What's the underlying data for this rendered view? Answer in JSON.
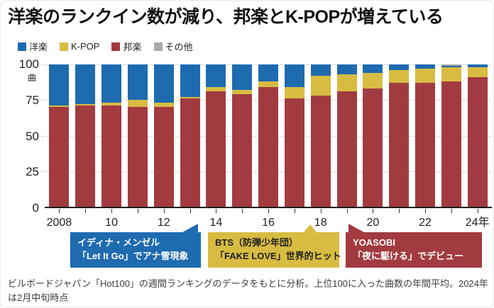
{
  "title": "洋楽のランクイン数が減り、邦楽とK-POPが増えている",
  "legend": [
    {
      "label": "洋楽",
      "color": "#1e6bb0"
    },
    {
      "label": "K-POP",
      "color": "#d8bc42"
    },
    {
      "label": "邦楽",
      "color": "#a23b40"
    },
    {
      "label": "その他",
      "color": "#a9a9a9"
    }
  ],
  "y_axis": {
    "ticks": [
      "100",
      "75",
      "50",
      "25",
      "0"
    ],
    "unit": "曲"
  },
  "x_axis": {
    "labels": [
      "2008",
      "10",
      "12",
      "14",
      "16",
      "18",
      "20",
      "22",
      "24年"
    ]
  },
  "chart_data": {
    "type": "bar",
    "stacked": true,
    "title": "洋楽のランクイン数が減り、邦楽とK-POPが増えている",
    "ylabel": "曲",
    "ylim": [
      0,
      100
    ],
    "grid": "dotted horizontal at 25/50/75/100",
    "legend_position": "top",
    "categories": [
      2008,
      2009,
      2010,
      2011,
      2012,
      2013,
      2014,
      2015,
      2016,
      2017,
      2018,
      2019,
      2020,
      2021,
      2022,
      2023,
      2024
    ],
    "series": [
      {
        "name": "邦楽",
        "color": "#a23b40",
        "values": [
          70,
          71,
          71,
          70,
          70,
          76,
          81,
          79,
          84,
          76,
          78,
          81,
          83,
          87,
          87,
          88,
          91
        ]
      },
      {
        "name": "K-POP",
        "color": "#d8bc42",
        "values": [
          1,
          1,
          2,
          5,
          3,
          1,
          3,
          3,
          4,
          8,
          14,
          12,
          11,
          9,
          10,
          10,
          7
        ]
      },
      {
        "name": "洋楽",
        "color": "#1e6bb0",
        "values": [
          29,
          28,
          27,
          25,
          27,
          23,
          16,
          18,
          12,
          16,
          8,
          7,
          6,
          4,
          3,
          1,
          2
        ]
      },
      {
        "name": "その他",
        "color": "#a9a9a9",
        "values": [
          0,
          0,
          0,
          0,
          0,
          0,
          0,
          0,
          0,
          0,
          0,
          0,
          0,
          0,
          0,
          1,
          0
        ]
      }
    ]
  },
  "annotations": [
    {
      "color": "#1e6bb0",
      "text_color": "#ffffff",
      "lines": [
        "イディナ・メンゼル",
        "「Let It Go」でアナ雪現象"
      ],
      "points_to_year": 2014
    },
    {
      "color": "#d8bc42",
      "text_color": "#1f1f1f",
      "lines": [
        "BTS（防弾少年団）",
        "「FAKE LOVE」世界的ヒット"
      ],
      "points_to_year": 2018
    },
    {
      "color": "#a23b40",
      "text_color": "#ffffff",
      "lines": [
        "YOASOBI",
        "「夜に駆ける」でデビュー"
      ],
      "points_to_year": 2019
    }
  ],
  "footnote": "ビルボードジャパン「Hot100」の週間ランキングのデータをもとに分析。上位100に入った曲数の年間平均。2024年は2月中旬時点"
}
